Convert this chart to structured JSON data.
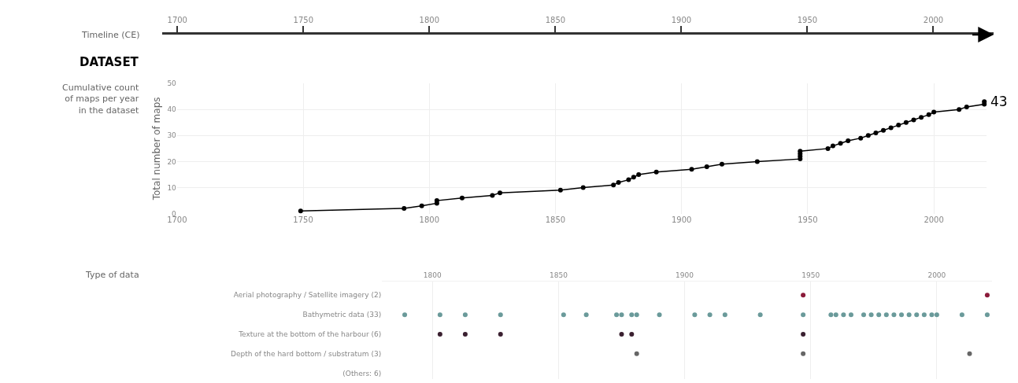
{
  "chart_data": [
    {
      "type": "line",
      "title": "DATASET",
      "subtitle": "Cumulative count of maps per year in the dataset",
      "ylabel": "Total number of maps",
      "marker": "circle",
      "grid": true,
      "x2label": "Timeline (CE)",
      "x2lim": [
        1694,
        2024
      ],
      "x2ticks": [
        1700,
        1750,
        1800,
        1850,
        1900,
        1950,
        2000
      ],
      "xlim": [
        1700,
        2021
      ],
      "xticks": [
        1700,
        1750,
        1800,
        1850,
        1900,
        1950,
        2000
      ],
      "ylim": [
        0,
        50
      ],
      "yticks": [
        0,
        10,
        20,
        30,
        40,
        50
      ],
      "x": [
        1749,
        1790,
        1797,
        1803,
        1803,
        1813,
        1825,
        1828,
        1852,
        1861,
        1873,
        1875,
        1879,
        1881,
        1883,
        1890,
        1904,
        1910,
        1916,
        1930,
        1947,
        1947,
        1947,
        1947,
        1958,
        1960,
        1963,
        1966,
        1971,
        1974,
        1977,
        1980,
        1983,
        1986,
        1989,
        1992,
        1995,
        1998,
        2000,
        2010,
        2013,
        2020,
        2020
      ],
      "series": [
        {
          "color": "#000000",
          "values": [
            1,
            2,
            3,
            4,
            5,
            6,
            7,
            8,
            9,
            10,
            11,
            12,
            13,
            14,
            15,
            16,
            17,
            18,
            19,
            20,
            21,
            22,
            23,
            24,
            25,
            26,
            27,
            28,
            29,
            30,
            31,
            32,
            33,
            34,
            35,
            36,
            37,
            38,
            39,
            40,
            41,
            42,
            43
          ]
        }
      ],
      "annotations": [
        {
          "text": "43",
          "x": 2020,
          "y": 43
        }
      ]
    },
    {
      "type": "scatter",
      "ylabel": "Type of data",
      "marker": "circle",
      "grid": "x",
      "orientation": "horizontal",
      "xlim": [
        1780,
        2022
      ],
      "xticks": [
        1800,
        1850,
        1900,
        1950,
        2000
      ],
      "categories": [
        "Aerial photography / Satellite imagery (2)",
        "Bathymetric data (33)",
        "Texture at the bottom of the harbour (6)",
        "Depth of the hard bottom / substratum (3)",
        "(Others: 6)"
      ],
      "series": [
        {
          "values": [
            1947,
            1789,
            1803,
            1881,
            null
          ],
          "colors": [
            "#8b1a3a",
            "#6a9a9a",
            "#3a2030",
            "#666666",
            null
          ]
        },
        {
          "values": [
            2020,
            1803,
            1813,
            1947,
            null
          ],
          "colors": [
            "#8b1a3a",
            "#6a9a9a",
            "#3a2030",
            "#666666",
            null
          ]
        },
        {
          "values": [
            null,
            1813,
            1827,
            2013,
            null
          ],
          "colors": [
            null,
            "#6a9a9a",
            "#3a2030",
            "#666666",
            null
          ]
        },
        {
          "values": [
            null,
            1827,
            1875,
            null,
            null
          ],
          "colors": [
            null,
            "#6a9a9a",
            "#3a2030",
            null,
            null
          ]
        },
        {
          "values": [
            null,
            1852,
            1879,
            null,
            null
          ],
          "colors": [
            null,
            "#6a9a9a",
            "#3a2030",
            null,
            null
          ]
        },
        {
          "values": [
            null,
            1861,
            1947,
            null,
            null
          ],
          "colors": [
            null,
            "#6a9a9a",
            "#3a2030",
            null,
            null
          ]
        },
        {
          "values": [
            null,
            1873,
            null,
            null,
            null
          ],
          "colors": [
            null,
            "#6a9a9a",
            null,
            null,
            null
          ]
        },
        {
          "values": [
            null,
            1875,
            null,
            null,
            null
          ],
          "colors": [
            null,
            "#6a9a9a",
            null,
            null,
            null
          ]
        },
        {
          "values": [
            null,
            1879,
            null,
            null,
            null
          ],
          "colors": [
            null,
            "#6a9a9a",
            null,
            null,
            null
          ]
        },
        {
          "values": [
            null,
            1881,
            null,
            null,
            null
          ],
          "colors": [
            null,
            "#6a9a9a",
            null,
            null,
            null
          ]
        },
        {
          "values": [
            null,
            1890,
            null,
            null,
            null
          ],
          "colors": [
            null,
            "#6a9a9a",
            null,
            null,
            null
          ]
        },
        {
          "values": [
            null,
            1904,
            null,
            null,
            null
          ],
          "colors": [
            null,
            "#6a9a9a",
            null,
            null,
            null
          ]
        },
        {
          "values": [
            null,
            1910,
            null,
            null,
            null
          ],
          "colors": [
            null,
            "#6a9a9a",
            null,
            null,
            null
          ]
        },
        {
          "values": [
            null,
            1916,
            null,
            null,
            null
          ],
          "colors": [
            null,
            "#6a9a9a",
            null,
            null,
            null
          ]
        },
        {
          "values": [
            null,
            1930,
            null,
            null,
            null
          ],
          "colors": [
            null,
            "#6a9a9a",
            null,
            null,
            null
          ]
        },
        {
          "values": [
            null,
            1947,
            null,
            null,
            null
          ],
          "colors": [
            null,
            "#6a9a9a",
            null,
            null,
            null
          ]
        },
        {
          "values": [
            null,
            1958,
            null,
            null,
            null
          ],
          "colors": [
            null,
            "#6a9a9a",
            null,
            null,
            null
          ]
        },
        {
          "values": [
            null,
            1960,
            null,
            null,
            null
          ],
          "colors": [
            null,
            "#6a9a9a",
            null,
            null,
            null
          ]
        },
        {
          "values": [
            null,
            1963,
            null,
            null,
            null
          ],
          "colors": [
            null,
            "#6a9a9a",
            null,
            null,
            null
          ]
        },
        {
          "values": [
            null,
            1966,
            null,
            null,
            null
          ],
          "colors": [
            null,
            "#6a9a9a",
            null,
            null,
            null
          ]
        },
        {
          "values": [
            null,
            1971,
            null,
            null,
            null
          ],
          "colors": [
            null,
            "#6a9a9a",
            null,
            null,
            null
          ]
        },
        {
          "values": [
            null,
            1974,
            null,
            null,
            null
          ],
          "colors": [
            null,
            "#6a9a9a",
            null,
            null,
            null
          ]
        },
        {
          "values": [
            null,
            1977,
            null,
            null,
            null
          ],
          "colors": [
            null,
            "#6a9a9a",
            null,
            null,
            null
          ]
        },
        {
          "values": [
            null,
            1980,
            null,
            null,
            null
          ],
          "colors": [
            null,
            "#6a9a9a",
            null,
            null,
            null
          ]
        },
        {
          "values": [
            null,
            1983,
            null,
            null,
            null
          ],
          "colors": [
            null,
            "#6a9a9a",
            null,
            null,
            null
          ]
        },
        {
          "values": [
            null,
            1986,
            null,
            null,
            null
          ],
          "colors": [
            null,
            "#6a9a9a",
            null,
            null,
            null
          ]
        },
        {
          "values": [
            null,
            1989,
            null,
            null,
            null
          ],
          "colors": [
            null,
            "#6a9a9a",
            null,
            null,
            null
          ]
        },
        {
          "values": [
            null,
            1992,
            null,
            null,
            null
          ],
          "colors": [
            null,
            "#6a9a9a",
            null,
            null,
            null
          ]
        },
        {
          "values": [
            null,
            1995,
            null,
            null,
            null
          ],
          "colors": [
            null,
            "#6a9a9a",
            null,
            null,
            null
          ]
        },
        {
          "values": [
            null,
            1998,
            null,
            null,
            null
          ],
          "colors": [
            null,
            "#6a9a9a",
            null,
            null,
            null
          ]
        },
        {
          "values": [
            null,
            2000,
            null,
            null,
            null
          ],
          "colors": [
            null,
            "#6a9a9a",
            null,
            null,
            null
          ]
        },
        {
          "values": [
            null,
            2010,
            null,
            null,
            null
          ],
          "colors": [
            null,
            "#6a9a9a",
            null,
            null,
            null
          ]
        },
        {
          "values": [
            null,
            2020,
            null,
            null,
            null
          ],
          "colors": [
            null,
            "#6a9a9a",
            null,
            null,
            null
          ]
        }
      ]
    }
  ]
}
